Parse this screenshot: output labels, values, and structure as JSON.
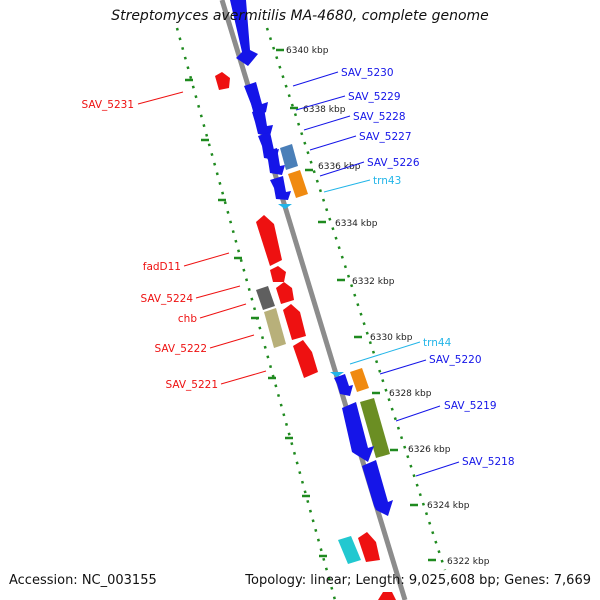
{
  "title": "Streptomyces avermitilis MA-4680, complete genome",
  "footer": {
    "accession": "Accession: NC_003155",
    "summary": "Topology: linear; Length: 9,025,608 bp; Genes: 7,669"
  },
  "colors": {
    "backbone": "#8c8c8c",
    "tick": "#1f8a1f",
    "blue": "#1515e8",
    "red": "#ee1111",
    "cyan": "#22b5e8"
  },
  "kbp_labels": [
    "6340 kbp",
    "6338 kbp",
    "6336 kbp",
    "6334 kbp",
    "6332 kbp",
    "6330 kbp",
    "6328 kbp",
    "6326 kbp",
    "6324 kbp",
    "6322 kbp"
  ],
  "genes": [
    {
      "name": "SAV_5230",
      "color": "#1515e8",
      "strand": "reverse"
    },
    {
      "name": "SAV_5229",
      "color": "#1515e8",
      "strand": "reverse"
    },
    {
      "name": "SAV_5228",
      "color": "#1515e8",
      "strand": "reverse"
    },
    {
      "name": "SAV_5227",
      "color": "#1515e8",
      "strand": "reverse"
    },
    {
      "name": "SAV_5226",
      "color": "#1515e8",
      "strand": "reverse"
    },
    {
      "name": "trn43",
      "color": "#22b5e8",
      "strand": "reverse"
    },
    {
      "name": "SAV_5220",
      "color": "#1515e8",
      "strand": "reverse"
    },
    {
      "name": "trn44",
      "color": "#22b5e8",
      "strand": "reverse"
    },
    {
      "name": "SAV_5219",
      "color": "#1515e8",
      "strand": "reverse"
    },
    {
      "name": "SAV_5218",
      "color": "#1515e8",
      "strand": "reverse"
    },
    {
      "name": "SAV_5231",
      "color": "#ee1111",
      "strand": "forward"
    },
    {
      "name": "fadD11",
      "color": "#ee1111",
      "strand": "forward"
    },
    {
      "name": "SAV_5224",
      "color": "#ee1111",
      "strand": "forward"
    },
    {
      "name": "chb",
      "color": "#ee1111",
      "strand": "forward"
    },
    {
      "name": "SAV_5222",
      "color": "#ee1111",
      "strand": "forward"
    },
    {
      "name": "SAV_5221",
      "color": "#ee1111",
      "strand": "forward"
    }
  ]
}
